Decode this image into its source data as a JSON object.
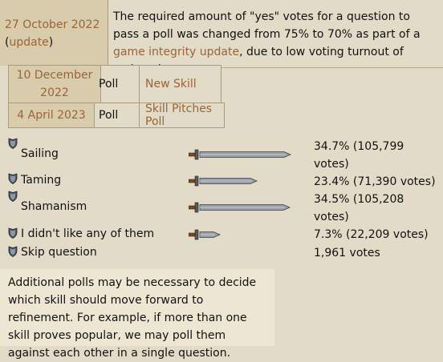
{
  "update": {
    "date": "27 October 2022",
    "link_label": "update",
    "text_before": "The required amount of \"yes\" votes for a question to pass a poll was changed from 75% to 70% as part of a ",
    "link_text": "game integrity update",
    "text_after": ", due to low voting turnout of active players."
  },
  "releases": [
    {
      "date": "10 December 2022",
      "type": "Poll",
      "name": "New Skill"
    },
    {
      "date": "4 April 2023",
      "type": "Poll",
      "name": "Skill Pitches Poll"
    }
  ],
  "options": [
    {
      "label": "Sailing",
      "percent": 34.7,
      "result": "34.7% (105,799 votes)"
    },
    {
      "label": "Taming",
      "percent": 23.4,
      "result": "23.4% (71,390 votes)"
    },
    {
      "label": "Shamanism",
      "percent": 34.5,
      "result": "34.5% (105,208 votes)"
    },
    {
      "label": "I didn't like any of them",
      "percent": 7.3,
      "result": "7.3% (22,209 votes)"
    },
    {
      "label": "Skip question",
      "result": "1,961 votes"
    }
  ],
  "note": "Additional polls may be necessary to decide which skill should move forward to refinement. For example, if more than one skill proves popular, we may poll them against each other in a single question.",
  "icons": {
    "shield": "shield-icon",
    "sword": "sword-icon"
  },
  "colors": {
    "link": "#9a6436",
    "background": "#e2dbc8",
    "header_cell": "#d8ccac"
  }
}
